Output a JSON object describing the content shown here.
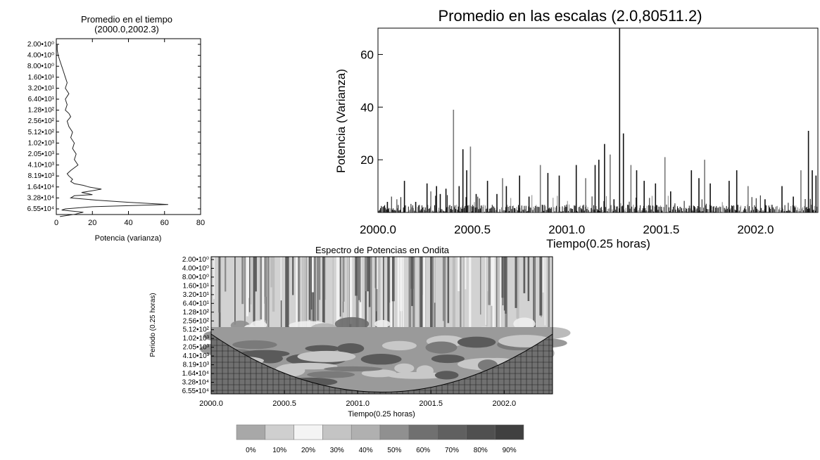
{
  "chart_data": [
    {
      "id": "time_avg",
      "type": "line",
      "title": "Promedio en el tiempo",
      "subtitle": "(2000.0,2002.3)",
      "xlabel": "Potencia (varianza)",
      "ylabel": "",
      "xlim": [
        0,
        80
      ],
      "x_ticks": [
        "0",
        "20",
        "40",
        "60",
        "80"
      ],
      "period_ticks": [
        "2.00•10⁰",
        "4.00•10⁰",
        "8.00•10⁰",
        "1.60•10¹",
        "3.20•10¹",
        "6.40•10¹",
        "1.28•10²",
        "2.56•10²",
        "5.12•10²",
        "1.02•10³",
        "2.05•10³",
        "4.10•10³",
        "8.19•10³",
        "1.64•10⁴",
        "3.28•10⁴",
        "6.55•10⁴"
      ],
      "curve": {
        "x": [
          0.5,
          0.5,
          1,
          2,
          3,
          4,
          5,
          6,
          5,
          7,
          5,
          6,
          5,
          7,
          8,
          6,
          7,
          9,
          8,
          10,
          9,
          11,
          10,
          12,
          8,
          6,
          7,
          9,
          8,
          10,
          15,
          18,
          25,
          18,
          14,
          20,
          10,
          8,
          22,
          40,
          62,
          20,
          5,
          3,
          15,
          10,
          2
        ],
        "y_index": [
          0,
          0.5,
          1,
          1.5,
          2,
          2.5,
          3,
          3.5,
          4,
          4.5,
          5,
          5.5,
          6,
          6.3,
          6.6,
          7,
          7.5,
          8,
          8.5,
          9,
          9.5,
          10,
          10.5,
          11,
          11.5,
          11.8,
          12,
          12.3,
          12.5,
          12.7,
          12.85,
          13,
          13.2,
          13.4,
          13.5,
          13.7,
          13.8,
          14,
          14.2,
          14.4,
          14.6,
          14.8,
          15,
          15.1,
          15.3,
          15.5,
          15.7
        ]
      }
    },
    {
      "id": "scale_avg",
      "type": "bar",
      "title": "Promedio en las escalas (2.0,80511.2)",
      "xlabel": "Tiempo(0.25 horas)",
      "ylabel": "Potencia (Varianza)",
      "xlim": [
        2000.0,
        2002.33
      ],
      "ylim": [
        0,
        70
      ],
      "x_ticks": [
        "2000.0",
        "2000.5",
        "2001.0",
        "2001.5",
        "2002.0"
      ],
      "y_ticks": [
        "20",
        "40",
        "60"
      ],
      "spikes": {
        "x": [
          2000.05,
          2000.1,
          2000.14,
          2000.2,
          2000.26,
          2000.28,
          2000.31,
          2000.33,
          2000.36,
          2000.4,
          2000.43,
          2000.45,
          2000.47,
          2000.49,
          2000.52,
          2000.58,
          2000.63,
          2000.66,
          2000.68,
          2000.75,
          2000.8,
          2000.86,
          2000.9,
          2000.96,
          2001.05,
          2001.1,
          2001.15,
          2001.17,
          2001.2,
          2001.23,
          2001.25,
          2001.28,
          2001.3,
          2001.34,
          2001.37,
          2001.41,
          2001.47,
          2001.52,
          2001.55,
          2001.66,
          2001.7,
          2001.73,
          2001.76,
          2001.86,
          2001.9,
          2001.96,
          2002.05,
          2002.14,
          2002.2,
          2002.24,
          2002.28,
          2002.3,
          2002.32
        ],
        "y": [
          4,
          5,
          12,
          4,
          11,
          8,
          10,
          7,
          9,
          39,
          10,
          24,
          16,
          25,
          7,
          12,
          7,
          13,
          10,
          14,
          6,
          18,
          15,
          14,
          18,
          13,
          18,
          20,
          26,
          22,
          5,
          70,
          30,
          18,
          16,
          12,
          11,
          21,
          8,
          16,
          13,
          20,
          11,
          12,
          16,
          10,
          5,
          10,
          6,
          16,
          31,
          16,
          14
        ]
      },
      "noise_level": 3
    },
    {
      "id": "wavelet",
      "type": "heatmap",
      "title": "Espectro de Potencias en Ondita",
      "xlabel": "Tiempo(0.25 horas)",
      "ylabel": "Periodo (0.25 horas)",
      "xlim": [
        2000.0,
        2002.33
      ],
      "x_ticks": [
        "2000.0",
        "2000.5",
        "2001.0",
        "2001.5",
        "2002.0"
      ],
      "period_ticks": [
        "2.00•10⁰",
        "4.00•10⁰",
        "8.00•10⁰",
        "1.60•10¹",
        "3.20•10¹",
        "6.40•10¹",
        "1.28•10²",
        "2.56•10²",
        "5.12•10²",
        "1.02•10³",
        "2.05•10³",
        "4.10•10³",
        "8.19•10³",
        "1.64•10⁴",
        "3.28•10⁴",
        "6.55•10⁴"
      ]
    }
  ],
  "colorbar": {
    "labels": [
      "0%",
      "10%",
      "20%",
      "30%",
      "40%",
      "50%",
      "60%",
      "70%",
      "80%",
      "90%"
    ],
    "colors": [
      "#a8a8a8",
      "#cfcfcf",
      "#f4f4f4",
      "#c4c4c4",
      "#b0b0b0",
      "#909090",
      "#707070",
      "#606060",
      "#505050",
      "#404040"
    ]
  }
}
